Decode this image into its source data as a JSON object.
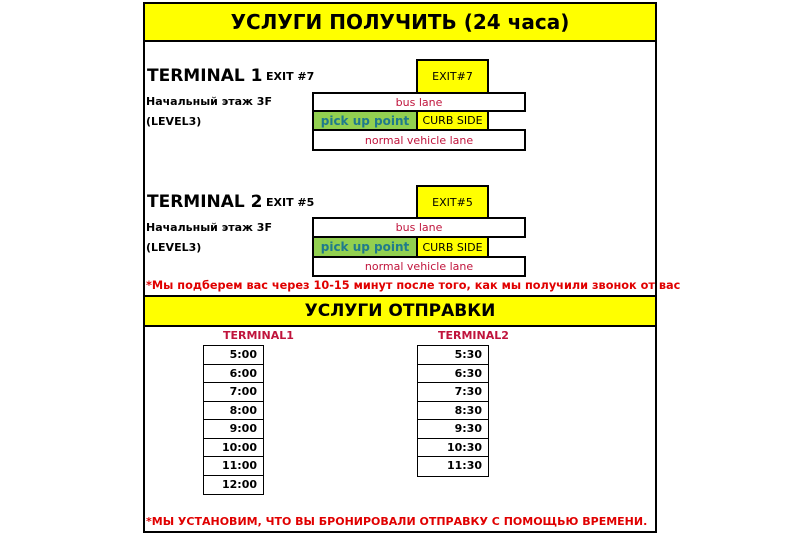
{
  "pickup": {
    "title": "УСЛУГИ ПОЛУЧИТЬ (24 часа)",
    "terminals": [
      {
        "name": "TERMINAL 1",
        "exit": "EXIT #7",
        "floor": "Начальный этаж 3F",
        "level": "(LEVEL3)",
        "exit_box": "EXIT#7",
        "bus_lane": "bus lane",
        "pickup_point": "pick up point",
        "curb_side": "CURB SIDE",
        "normal_lane": "normal vehicle lane"
      },
      {
        "name": "TERMINAL 2",
        "exit": "EXIT #5",
        "floor": "Начальный этаж 3F",
        "level": "(LEVEL3)",
        "exit_box": "EXIT#5",
        "bus_lane": "bus lane",
        "pickup_point": "pick up point",
        "curb_side": "CURB SIDE",
        "normal_lane": "normal vehicle lane"
      }
    ],
    "note": "*Мы подберем вас через 10-15 минут после того, как мы получили звонок от вас"
  },
  "dropoff": {
    "title": "УСЛУГИ ОТПРАВКИ",
    "terminal1": {
      "label": "TERMINAL1",
      "times": [
        "5:00",
        "6:00",
        "7:00",
        "8:00",
        "9:00",
        "10:00",
        "11:00",
        "12:00"
      ]
    },
    "terminal2": {
      "label": "TERMINAL2",
      "times": [
        "5:30",
        "6:30",
        "7:30",
        "8:30",
        "9:30",
        "10:30",
        "11:30"
      ]
    },
    "note": "*МЫ УСТАНОВИМ, ЧТО ВЫ БРОНИРОВАЛИ ОТПРАВКУ С ПОМОЩЬЮ ВРЕМЕНИ."
  },
  "colors": {
    "band": "#ffff00",
    "pickup_point": "#92d050",
    "red": "#c0143c"
  }
}
